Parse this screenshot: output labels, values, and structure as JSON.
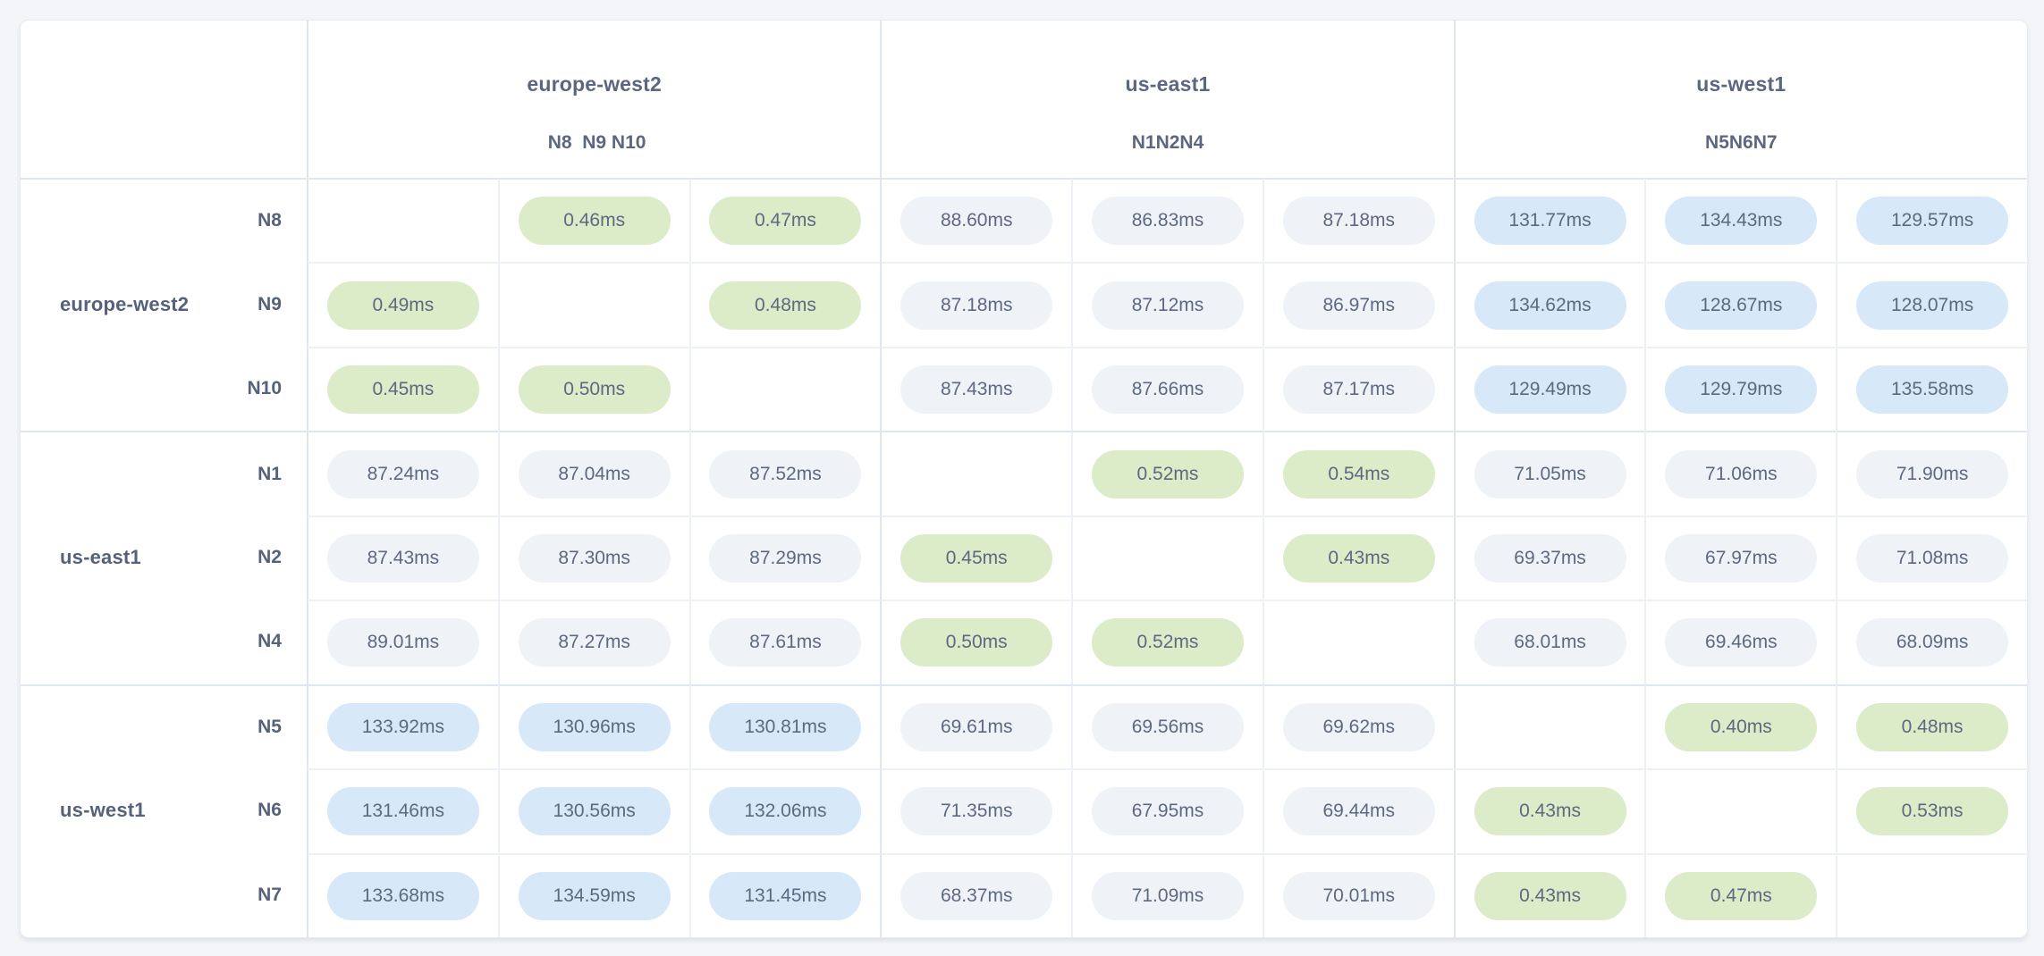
{
  "page": {
    "background": "#f3f5f9"
  },
  "card": {
    "background": "#ffffff",
    "border_color": "#e7ebf2"
  },
  "chart_data": {
    "type": "heatmap",
    "title": "",
    "unit": "ms",
    "legend_position": "none",
    "column_groups": [
      {
        "region": "europe-west2",
        "nodes": [
          "N8",
          "N9",
          "N10"
        ]
      },
      {
        "region": "us-east1",
        "nodes": [
          "N1",
          "N2",
          "N4"
        ]
      },
      {
        "region": "us-west1",
        "nodes": [
          "N5",
          "N6",
          "N7"
        ]
      }
    ],
    "row_groups": [
      {
        "region": "europe-west2",
        "rows": [
          {
            "node": "N8",
            "values": [
              null,
              "0.46ms",
              "0.47ms",
              "88.60ms",
              "86.83ms",
              "87.18ms",
              "131.77ms",
              "134.43ms",
              "129.57ms"
            ]
          },
          {
            "node": "N9",
            "values": [
              "0.49ms",
              null,
              "0.48ms",
              "87.18ms",
              "87.12ms",
              "86.97ms",
              "134.62ms",
              "128.67ms",
              "128.07ms"
            ]
          },
          {
            "node": "N10",
            "values": [
              "0.45ms",
              "0.50ms",
              null,
              "87.43ms",
              "87.66ms",
              "87.17ms",
              "129.49ms",
              "129.79ms",
              "135.58ms"
            ]
          }
        ]
      },
      {
        "region": "us-east1",
        "rows": [
          {
            "node": "N1",
            "values": [
              "87.24ms",
              "87.04ms",
              "87.52ms",
              null,
              "0.52ms",
              "0.54ms",
              "71.05ms",
              "71.06ms",
              "71.90ms"
            ]
          },
          {
            "node": "N2",
            "values": [
              "87.43ms",
              "87.30ms",
              "87.29ms",
              "0.45ms",
              null,
              "0.43ms",
              "69.37ms",
              "67.97ms",
              "71.08ms"
            ]
          },
          {
            "node": "N4",
            "values": [
              "89.01ms",
              "87.27ms",
              "87.61ms",
              "0.50ms",
              "0.52ms",
              null,
              "68.01ms",
              "69.46ms",
              "68.09ms"
            ]
          }
        ]
      },
      {
        "region": "us-west1",
        "rows": [
          {
            "node": "N5",
            "values": [
              "133.92ms",
              "130.96ms",
              "130.81ms",
              "69.61ms",
              "69.56ms",
              "69.62ms",
              null,
              "0.40ms",
              "0.48ms"
            ]
          },
          {
            "node": "N6",
            "values": [
              "131.46ms",
              "130.56ms",
              "132.06ms",
              "71.35ms",
              "67.95ms",
              "69.44ms",
              "0.43ms",
              null,
              "0.53ms"
            ]
          },
          {
            "node": "N7",
            "values": [
              "133.68ms",
              "134.59ms",
              "131.45ms",
              "68.37ms",
              "71.09ms",
              "70.01ms",
              "0.43ms",
              "0.47ms",
              null
            ]
          }
        ]
      }
    ],
    "badge_colors": {
      "same_region_fast": "#dcebc8",
      "cross_region_near": "#eff2f7",
      "cross_region_far": "#d7e8f8"
    },
    "tier_thresholds_ms": {
      "fast_below": 1,
      "near_below": 100
    }
  }
}
